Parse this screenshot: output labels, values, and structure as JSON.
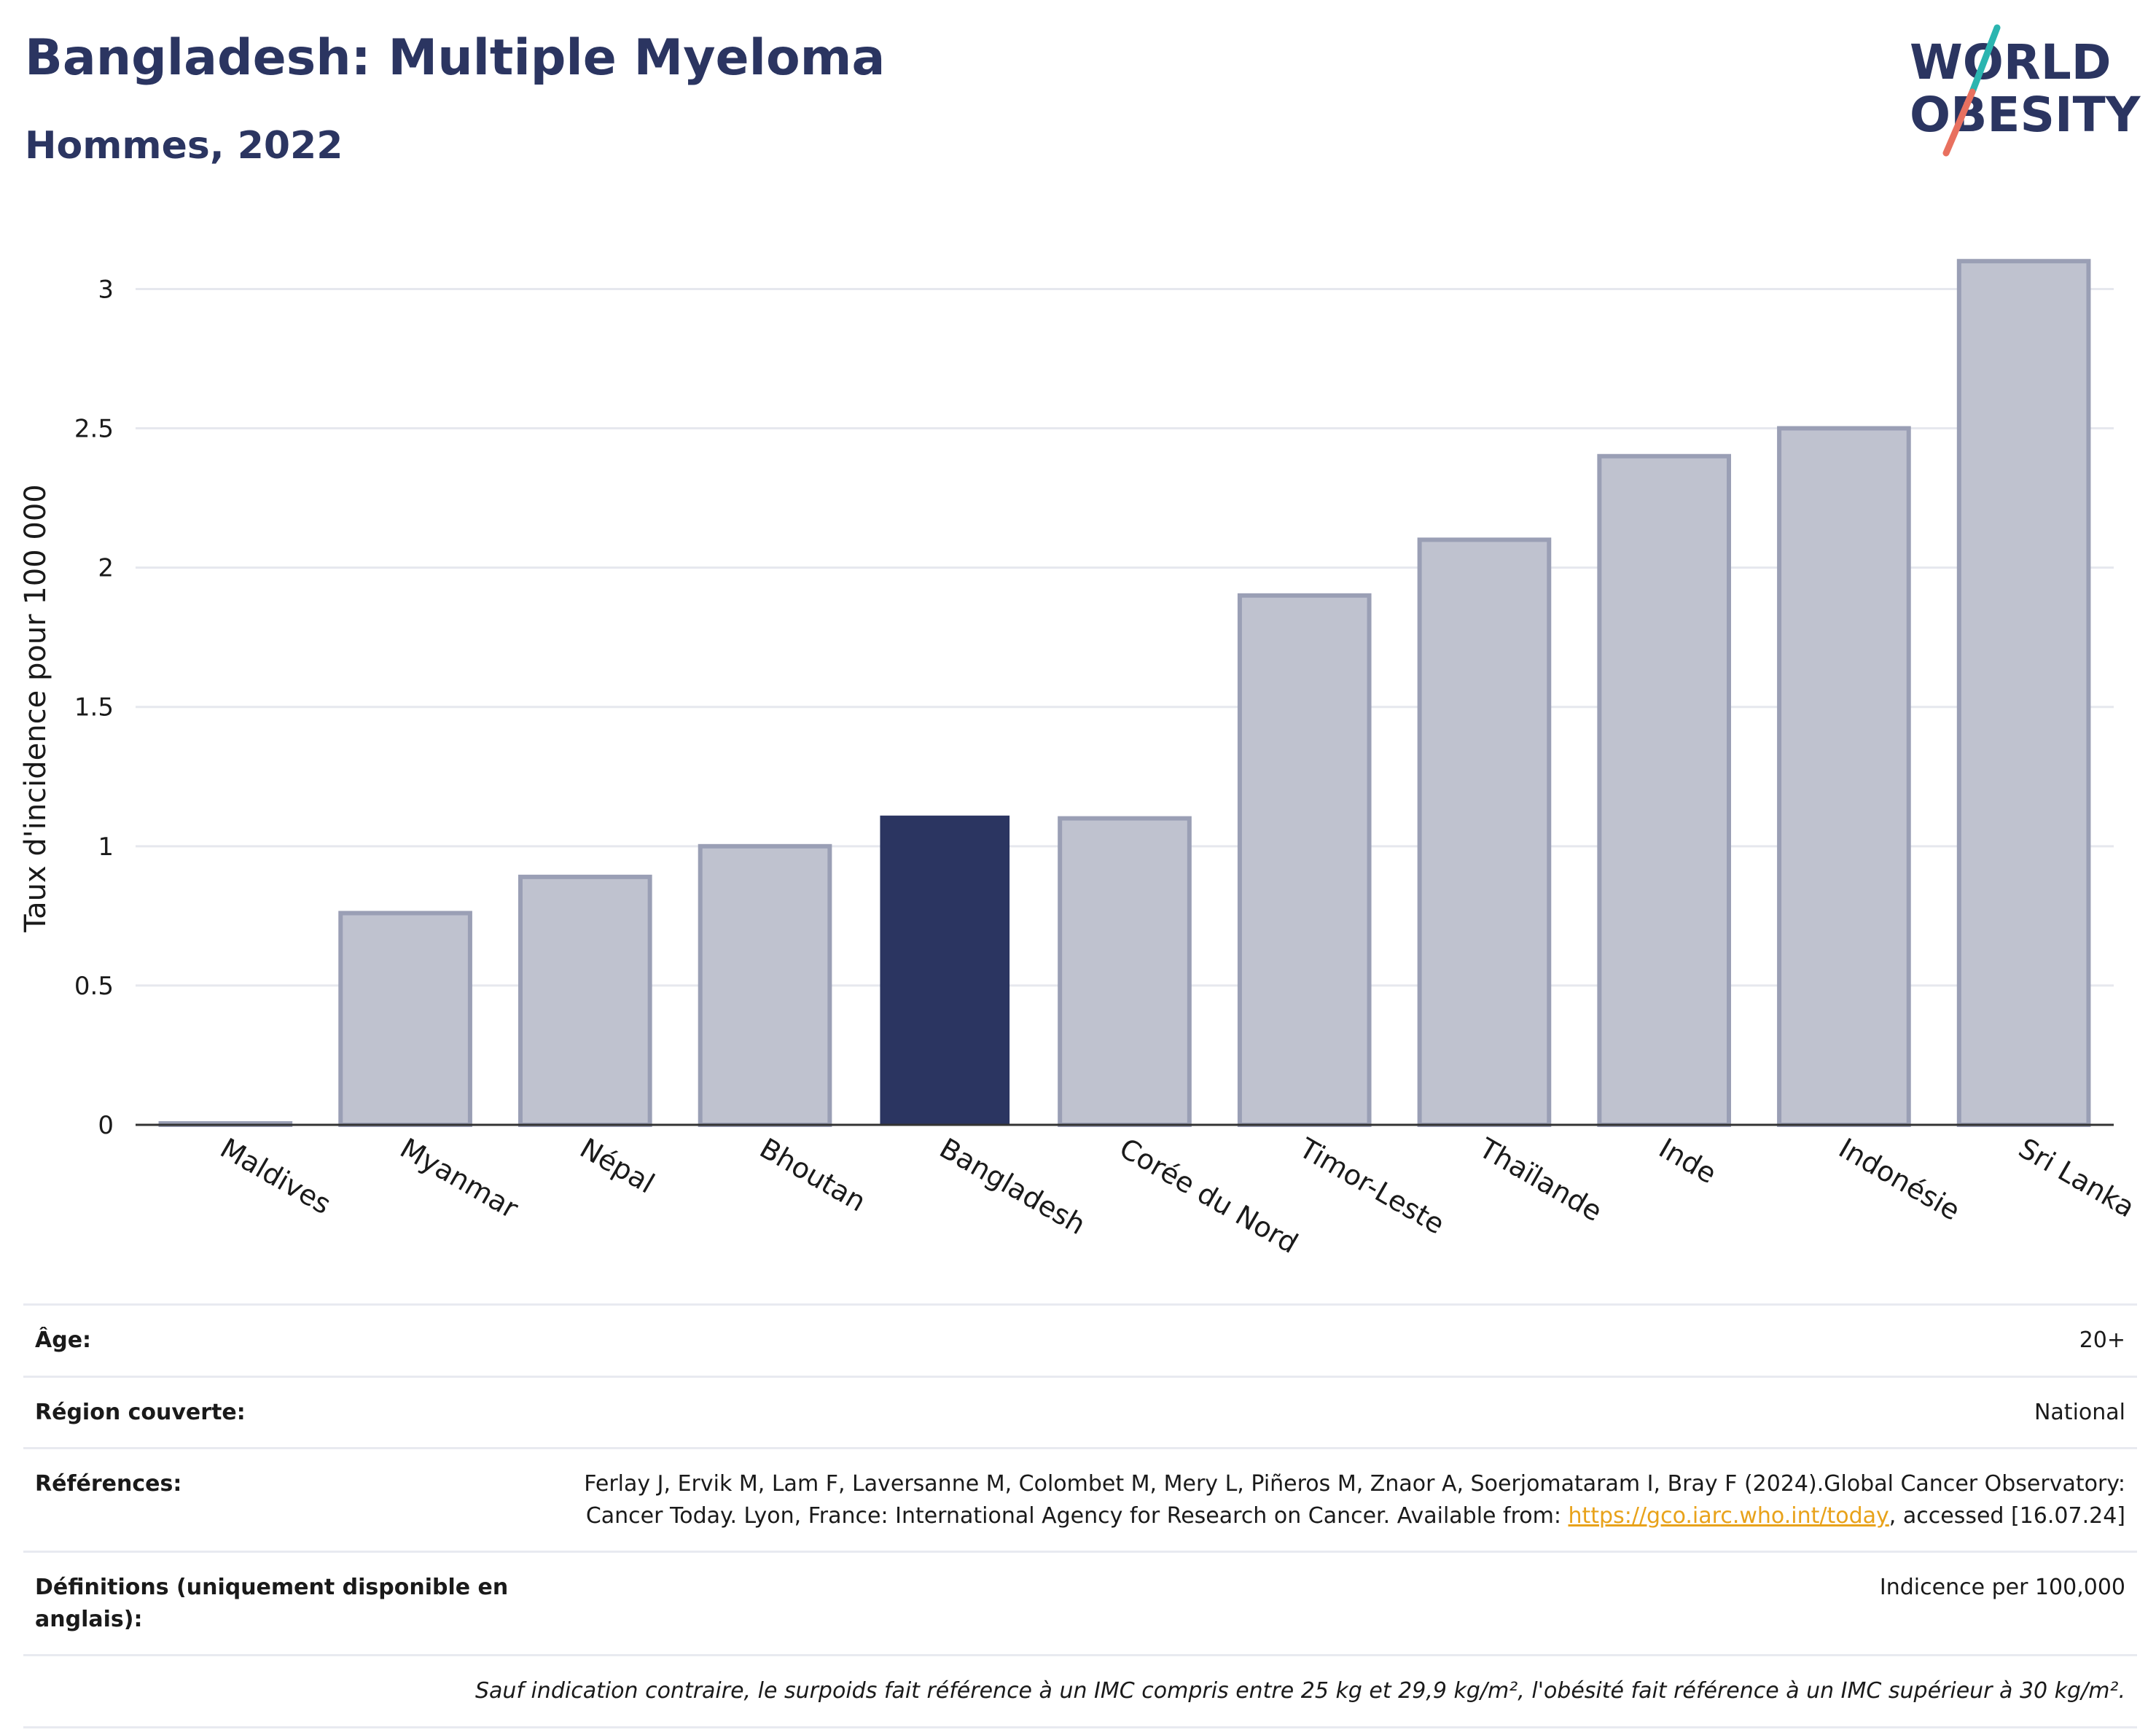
{
  "title": "Bangladesh: Multiple Myeloma",
  "subtitle": "Hommes, 2022",
  "logo": {
    "line1": "WORLD",
    "line2": "OBESITY",
    "brand_color": "#2b3561",
    "slash_colors": [
      "#2bb5b0",
      "#e8705f"
    ]
  },
  "colors": {
    "bar": "#bfc2cf",
    "bar_border": "#9a9fb5",
    "highlight": "#2b3561",
    "grid": "#e6e8ee",
    "axis": "#333333"
  },
  "chart_data": {
    "type": "bar",
    "categories": [
      "Maldives",
      "Myanmar",
      "Népal",
      "Bhoutan",
      "Bangladesh",
      "Corée du Nord",
      "Timor-Leste",
      "Thaïlande",
      "Inde",
      "Indonésie",
      "Sri Lanka"
    ],
    "values": [
      0,
      0.76,
      0.89,
      1.0,
      1.11,
      1.1,
      1.9,
      2.1,
      2.4,
      2.5,
      3.1
    ],
    "highlight": "Bangladesh",
    "ylabel": "Taux d'incidence pour 100 000",
    "yticks": [
      0,
      0.5,
      1,
      1.5,
      2,
      2.5,
      3
    ],
    "ytick_labels": [
      "0",
      "0.5",
      "1",
      "1.5",
      "2",
      "2.5",
      "3"
    ],
    "ylim": [
      0,
      3.2
    ],
    "grid": true
  },
  "info": {
    "age_label": "Âge:",
    "age_value": "20+",
    "region_label": "Région couverte:",
    "region_value": "National",
    "ref_label": "Références:",
    "ref_text": "Ferlay J, Ervik M, Lam F, Laversanne M, Colombet M, Mery L, Piñeros M, Znaor A, Soerjomataram I, Bray F (2024).Global Cancer Observatory: Cancer Today. Lyon, France: International Agency for Research on Cancer. Available from: ",
    "ref_link": "https://gco.iarc.who.int/today",
    "ref_tail": ", accessed [16.07.24]",
    "def_label": "Définitions (uniquement disponible en anglais):",
    "def_value": "Indicence per 100,000",
    "note": "Sauf indication contraire, le surpoids fait référence à un IMC compris entre 25 kg et 29,9 kg/m², l'obésité fait référence à un IMC supérieur à 30 kg/m²."
  }
}
